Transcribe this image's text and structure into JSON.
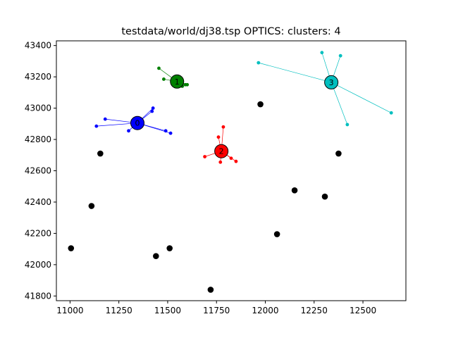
{
  "chart_data": {
    "type": "scatter",
    "title": "testdata/world/dj38.tsp OPTICS: clusters: 4",
    "xlabel": "",
    "ylabel": "",
    "xlim": [
      10930,
      12720
    ],
    "ylim": [
      41770,
      43430
    ],
    "x_ticks": [
      11000,
      11250,
      11500,
      11750,
      12000,
      12250,
      12500
    ],
    "y_ticks": [
      41800,
      42000,
      42200,
      42400,
      42600,
      42800,
      43000,
      43200,
      43400
    ],
    "x_tick_labels": [
      "11000",
      "11250",
      "11500",
      "11750",
      "12000",
      "12250",
      "12500"
    ],
    "y_tick_labels": [
      "41800",
      "42000",
      "42200",
      "42400",
      "42600",
      "42800",
      "43000",
      "43200",
      "43400"
    ],
    "grid": false,
    "clusters": [
      {
        "label": "0",
        "color": "#0000ff",
        "center": [
          11345,
          42905
        ],
        "points": [
          [
            11135,
            42885
          ],
          [
            11180,
            42930
          ],
          [
            11300,
            42855
          ],
          [
            11320,
            42920
          ],
          [
            11420,
            42980
          ],
          [
            11425,
            43000
          ],
          [
            11490,
            42855
          ],
          [
            11515,
            42840
          ]
        ]
      },
      {
        "label": "1",
        "color": "#008000",
        "center": [
          11548,
          43170
        ],
        "points": [
          [
            11455,
            43255
          ],
          [
            11480,
            43185
          ],
          [
            11530,
            43165
          ],
          [
            11575,
            43140
          ],
          [
            11590,
            43150
          ],
          [
            11600,
            43150
          ]
        ]
      },
      {
        "label": "2",
        "color": "#ff0000",
        "center": [
          11775,
          42725
        ],
        "points": [
          [
            11690,
            42690
          ],
          [
            11760,
            42815
          ],
          [
            11770,
            42655
          ],
          [
            11785,
            42880
          ],
          [
            11825,
            42680
          ],
          [
            11850,
            42660
          ]
        ]
      },
      {
        "label": "3",
        "color": "#00bfbf",
        "center": [
          12338,
          43165
        ],
        "points": [
          [
            11965,
            43290
          ],
          [
            12290,
            43355
          ],
          [
            12385,
            43335
          ],
          [
            12420,
            42895
          ],
          [
            12645,
            42970
          ]
        ]
      }
    ],
    "noise": {
      "color": "#000000",
      "points": [
        [
          11005,
          42105
        ],
        [
          11110,
          42375
        ],
        [
          11155,
          42710
        ],
        [
          11440,
          42055
        ],
        [
          11510,
          42105
        ],
        [
          11720,
          41840
        ],
        [
          11975,
          43025
        ],
        [
          12060,
          42195
        ],
        [
          12150,
          42475
        ],
        [
          12305,
          42435
        ],
        [
          12375,
          42710
        ]
      ]
    }
  }
}
